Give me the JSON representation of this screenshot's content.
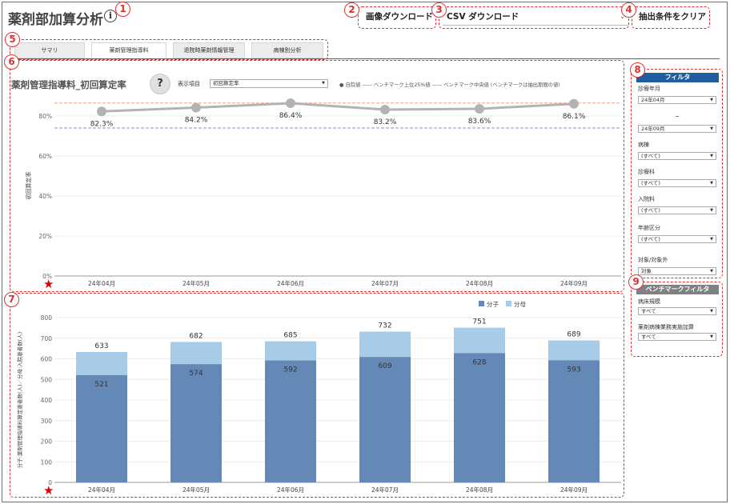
{
  "header": {
    "title": "薬剤部加算分析",
    "info_icon": "i",
    "image_download": "画像ダウンロード",
    "csv_download": "CSV ダウンロード",
    "clear_filters": "抽出条件をクリア"
  },
  "tabs": [
    "サマリ",
    "薬剤管理指導料",
    "退院時薬剤情報管理",
    "病棟別分析"
  ],
  "annotations": [
    "1",
    "2",
    "3",
    "4",
    "5",
    "6",
    "7",
    "8",
    "9"
  ],
  "star": "★",
  "top_chart": {
    "help_icon": "?",
    "display_label": "表示項目",
    "display_value": "初回算定率",
    "legend": "● 自院値 —— ベンチマーク上位25%値 —— ベンチマーク中央値 (ベンチマークは抽出期間の値)"
  },
  "filters": {
    "header": "フィルタ",
    "fields": [
      {
        "label": "診療年月",
        "value": "24年04月"
      },
      {
        "label": "~",
        "value": "24年09月"
      },
      {
        "label": "病棟",
        "value": "(すべて)"
      },
      {
        "label": "診療科",
        "value": "(すべて)"
      },
      {
        "label": "入院料",
        "value": "(すべて)"
      },
      {
        "label": "年齢区分",
        "value": "(すべて)"
      },
      {
        "label": "対象/対象外",
        "value": "対象"
      }
    ]
  },
  "benchmark_filters": {
    "header": "ベンチマークフィルタ",
    "fields": [
      {
        "label": "病床規模",
        "value": "すべて"
      },
      {
        "label": "薬剤病棟業務実施加算",
        "value": "すべて"
      }
    ]
  },
  "colors": {
    "numerator": "#6489b7",
    "denominator": "#a8cbe8",
    "line": "#b3b3b3",
    "bench_top": "#f0a090",
    "bench_mid": "#7d8fd6",
    "filter_head": "#1f5f9f",
    "bench_head": "#808080"
  },
  "chart_data": [
    {
      "type": "line",
      "title": "薬剤管理指導料_初回算定率",
      "ylabel": "初回算定率",
      "x": [
        "24年04月",
        "24年05月",
        "24年06月",
        "24年07月",
        "24年08月",
        "24年09月"
      ],
      "values": [
        82.3,
        84.2,
        86.4,
        83.2,
        83.6,
        86.1
      ],
      "labels": [
        "82.3%",
        "84.2%",
        "86.4%",
        "83.2%",
        "83.6%",
        "86.1%"
      ],
      "benchmark_top25": 86.5,
      "benchmark_median": 74.0,
      "ylim": [
        0,
        90
      ],
      "yticks": [
        "0%",
        "20%",
        "40%",
        "60%",
        "80%"
      ],
      "ytick_values": [
        0,
        20,
        40,
        60,
        80
      ]
    },
    {
      "type": "bar",
      "ylabel": "分子:薬剤管理指導料算定患者数(人)／分母:入院患者数(人)",
      "categories": [
        "24年04月",
        "24年05月",
        "24年06月",
        "24年07月",
        "24年08月",
        "24年09月"
      ],
      "series": [
        {
          "name": "分子",
          "values": [
            521,
            574,
            592,
            609,
            628,
            593
          ]
        },
        {
          "name": "分母",
          "values": [
            633,
            682,
            685,
            732,
            751,
            689
          ]
        }
      ],
      "ylim": [
        0,
        800
      ],
      "yticks": [
        "0",
        "100",
        "200",
        "300",
        "400",
        "500",
        "600",
        "700",
        "800"
      ],
      "ytick_values": [
        0,
        100,
        200,
        300,
        400,
        500,
        600,
        700,
        800
      ]
    }
  ]
}
